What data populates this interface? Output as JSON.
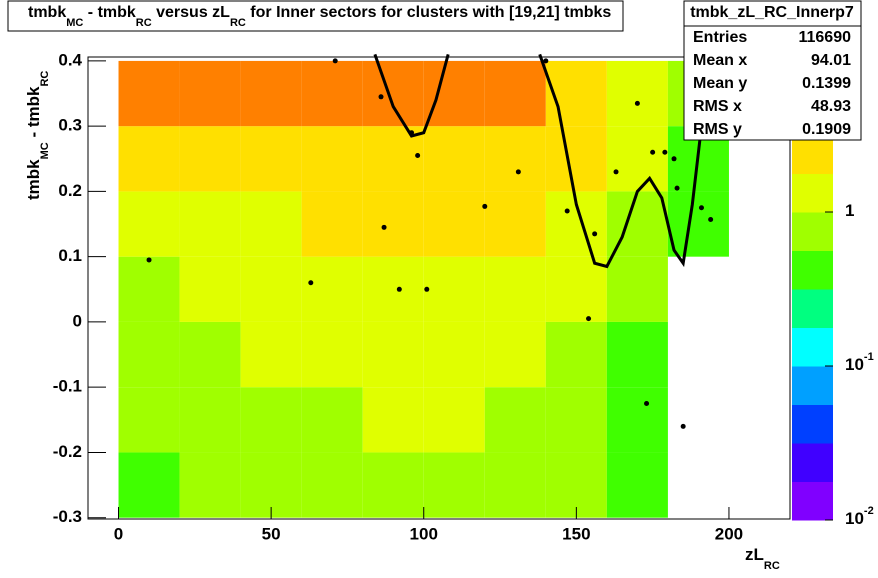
{
  "chart_data": {
    "type": "heatmap",
    "title_parts": [
      {
        "text": "tmbk"
      },
      {
        "text": "MC",
        "sub": true
      },
      {
        "text": " - tmbk"
      },
      {
        "text": "RC",
        "sub": true
      },
      {
        "text": " versus zL"
      },
      {
        "text": "RC",
        "sub": true
      },
      {
        "text": " for Inner sectors for clusters with [19,21] tmbks"
      }
    ],
    "xlabel_parts": [
      {
        "text": "zL"
      },
      {
        "text": "RC",
        "sub": true
      }
    ],
    "ylabel_parts": [
      {
        "text": "tmbk"
      },
      {
        "text": "MC",
        "sub": true
      },
      {
        "text": " - tmbk"
      },
      {
        "text": "RC",
        "sub": true
      }
    ],
    "xlim": [
      -10,
      220
    ],
    "xticks": [
      0,
      50,
      100,
      150,
      200
    ],
    "ylim": [
      -0.302,
      0.406
    ],
    "yticks": [
      -0.3,
      -0.2,
      -0.1,
      0,
      0.1,
      0.2,
      0.3,
      0.4
    ],
    "x_edges": [
      0,
      20,
      40,
      60,
      80,
      100,
      120,
      140,
      160,
      180,
      200
    ],
    "y_edges": [
      -0.3,
      -0.2,
      -0.1,
      0,
      0.1,
      0.2,
      0.3,
      0.4
    ],
    "z": [
      [
        0.5,
        0.6,
        0.6,
        0.7,
        0.8,
        0.8,
        0.7,
        0.6,
        0.4,
        null
      ],
      [
        0.6,
        0.7,
        0.8,
        0.9,
        1,
        1,
        0.9,
        0.7,
        0.5,
        null
      ],
      [
        0.7,
        0.8,
        1,
        1,
        1.2,
        1.2,
        1,
        0.8,
        0.5,
        null
      ],
      [
        0.9,
        1,
        1.2,
        1.3,
        1.5,
        1.5,
        1.3,
        1,
        0.6,
        null
      ],
      [
        1.2,
        1.3,
        1.5,
        1.8,
        2,
        2,
        1.8,
        1.2,
        0.7,
        0.4
      ],
      [
        2,
        2.2,
        2.5,
        2.8,
        3,
        3,
        2.5,
        1.8,
        1,
        0.5
      ],
      [
        3.5,
        3.8,
        4,
        4,
        4.5,
        4.5,
        4,
        2.5,
        1.2,
        0.6
      ]
    ],
    "zlog": true,
    "zlim": [
      0.01,
      10
    ],
    "zticks": [
      {
        "value": 0.01,
        "label": "10",
        "exponent": "-2"
      },
      {
        "value": 0.1,
        "label": "10",
        "exponent": "-1"
      },
      {
        "value": 1,
        "label": "1"
      }
    ],
    "palette": [
      "#8000ff",
      "#4000ff",
      "#0040ff",
      "#00a0ff",
      "#00ffff",
      "#00ff80",
      "#40ff00",
      "#a0ff00",
      "#e0ff00",
      "#ffe000",
      "#ff8000",
      "#ff2000"
    ],
    "profile": {
      "color": "#000000",
      "x": [
        10,
        63,
        71,
        86,
        87,
        92,
        96,
        98,
        101,
        120,
        131,
        140,
        147,
        154,
        156,
        163,
        170,
        173,
        175,
        179,
        182,
        183,
        185,
        191,
        194
      ],
      "y": [
        0.095,
        0.06,
        0.4,
        0.345,
        0.145,
        0.05,
        0.29,
        0.255,
        0.05,
        0.177,
        0.23,
        0.4,
        0.17,
        0.005,
        0.135,
        0.23,
        0.335,
        -0.125,
        0.26,
        0.26,
        0.25,
        0.205,
        -0.16,
        0.175,
        0.157
      ]
    },
    "fit": {
      "color": "#000000",
      "x": [
        84,
        90,
        96,
        100,
        104,
        108,
        123,
        138,
        144,
        150,
        156,
        160,
        165,
        170,
        174,
        178,
        182,
        185,
        188,
        191,
        193
      ],
      "y": [
        0.41,
        0.33,
        0.285,
        0.29,
        0.34,
        0.41,
        null,
        0.41,
        0.33,
        0.18,
        0.09,
        0.085,
        0.13,
        0.2,
        0.22,
        0.19,
        0.11,
        0.09,
        0.18,
        0.3,
        0.41
      ]
    },
    "stats": {
      "title": "tmbk_zL_RC_Innerp7",
      "entries": [
        {
          "label": "Entries",
          "value": 116690
        },
        {
          "label": "Mean x",
          "value": 94.01
        },
        {
          "label": "Mean y",
          "value": 0.1399
        },
        {
          "label": "RMS x",
          "value": 48.93
        },
        {
          "label": "RMS y",
          "value": 0.1909
        }
      ]
    }
  }
}
